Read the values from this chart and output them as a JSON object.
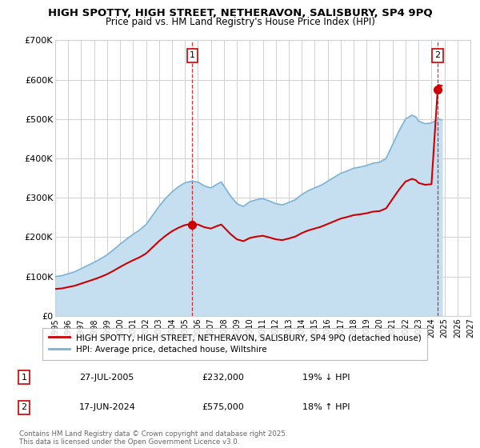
{
  "title": "HIGH SPOTTY, HIGH STREET, NETHERAVON, SALISBURY, SP4 9PQ",
  "subtitle": "Price paid vs. HM Land Registry's House Price Index (HPI)",
  "ylim": [
    0,
    700000
  ],
  "yticks": [
    0,
    100000,
    200000,
    300000,
    400000,
    500000,
    600000,
    700000
  ],
  "ytick_labels": [
    "£0",
    "£100K",
    "£200K",
    "£300K",
    "£400K",
    "£500K",
    "£600K",
    "£700K"
  ],
  "sale1_date": 2005.57,
  "sale1_price": 232000,
  "sale1_label": "1",
  "sale2_date": 2024.46,
  "sale2_price": 575000,
  "sale2_label": "2",
  "hpi_color": "#7ab3d4",
  "hpi_fill_color": "#c5dff0",
  "sale_color": "#cc0000",
  "background_color": "#ffffff",
  "grid_color": "#d0d0d0",
  "legend_label_sale": "HIGH SPOTTY, HIGH STREET, NETHERAVON, SALISBURY, SP4 9PQ (detached house)",
  "legend_label_hpi": "HPI: Average price, detached house, Wiltshire",
  "table_row1": [
    "1",
    "27-JUL-2005",
    "£232,000",
    "19% ↓ HPI"
  ],
  "table_row2": [
    "2",
    "17-JUN-2024",
    "£575,000",
    "18% ↑ HPI"
  ],
  "footnote": "Contains HM Land Registry data © Crown copyright and database right 2025.\nThis data is licensed under the Open Government Licence v3.0.",
  "xmin": 1995,
  "xmax": 2027
}
